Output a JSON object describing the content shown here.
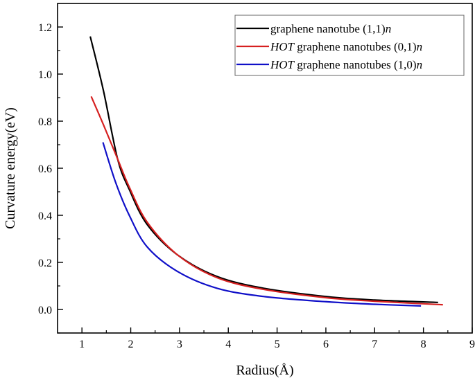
{
  "chart_data": {
    "type": "line",
    "title": "",
    "xlabel": "Radius(Å)",
    "ylabel": "Curvature energy(eV)",
    "xlim": [
      0.5,
      9
    ],
    "ylim": [
      -0.1,
      1.3
    ],
    "xticks": [
      1,
      2,
      3,
      4,
      5,
      6,
      7,
      8,
      9
    ],
    "yticks": [
      0.0,
      0.2,
      0.4,
      0.6,
      0.8,
      1.0,
      1.2
    ],
    "ytick_labels": [
      "0.0",
      "0.2",
      "0.4",
      "0.6",
      "0.8",
      "1.0",
      "1.2"
    ],
    "grid": false,
    "legend_placement": "top-right",
    "series": [
      {
        "name": "graphene nanotube (1,1)n",
        "name_parts": [
          {
            "text": "graphene nanotube (1,1)",
            "italic": false
          },
          {
            "text": "n",
            "italic": true
          }
        ],
        "color": "#000000",
        "x": [
          1.17,
          1.44,
          1.73,
          1.97,
          2.34,
          2.97,
          3.77,
          4.73,
          6.0,
          7.0,
          8.3
        ],
        "y": [
          1.16,
          0.93,
          0.64,
          0.51,
          0.36,
          0.23,
          0.14,
          0.09,
          0.055,
          0.04,
          0.03
        ]
      },
      {
        "name": "HOT graphene nanotubes (0,1)n",
        "name_parts": [
          {
            "text": "HOT",
            "italic": true
          },
          {
            "text": " graphene nanotubes (0,1)",
            "italic": false
          },
          {
            "text": "n",
            "italic": true
          }
        ],
        "color": "#d62020",
        "x": [
          1.19,
          1.44,
          1.73,
          1.97,
          2.34,
          2.97,
          3.77,
          4.73,
          6.0,
          7.0,
          8.4
        ],
        "y": [
          0.905,
          0.785,
          0.64,
          0.52,
          0.37,
          0.23,
          0.135,
          0.085,
          0.05,
          0.035,
          0.02
        ]
      },
      {
        "name": "HOT graphene nanotubes (1,0)n",
        "name_parts": [
          {
            "text": "HOT",
            "italic": true
          },
          {
            "text": " graphene nanotubes (1,0)",
            "italic": false
          },
          {
            "text": "n",
            "italic": true
          }
        ],
        "color": "#1010c8",
        "x": [
          1.43,
          1.69,
          1.97,
          2.34,
          2.97,
          3.77,
          4.73,
          6.0,
          7.0,
          7.95
        ],
        "y": [
          0.71,
          0.54,
          0.4,
          0.265,
          0.16,
          0.09,
          0.055,
          0.033,
          0.022,
          0.015
        ]
      }
    ]
  }
}
